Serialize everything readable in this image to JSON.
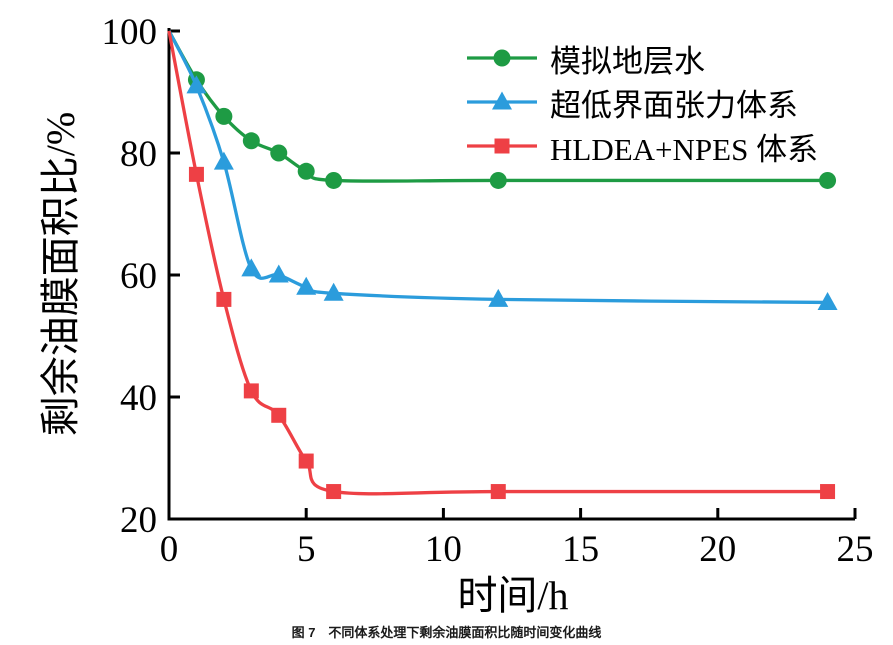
{
  "figure": {
    "caption": "图 7　不同体系处理下剩余油膜面积比随时间变化曲线"
  },
  "chart_data": {
    "type": "line",
    "title": "",
    "xlabel": "时间/h",
    "ylabel": "剩余油膜面积比/%",
    "xlim": [
      0,
      25
    ],
    "ylim": [
      20,
      100
    ],
    "xticks": [
      0,
      5,
      10,
      15,
      20,
      25
    ],
    "yticks": [
      20,
      40,
      60,
      80,
      100
    ],
    "grid": false,
    "legend_position": "upper-right-inside",
    "axis_color": "#000000",
    "marker_at_first_point": false,
    "x": [
      0,
      1,
      2,
      3,
      4,
      5,
      6,
      12,
      24
    ],
    "series": [
      {
        "name": "模拟地层水",
        "marker": "circle",
        "color": "#1e9b44",
        "values": [
          100,
          92,
          86,
          82,
          80,
          77,
          75.5,
          75.5,
          75.5
        ]
      },
      {
        "name": "超低界面张力体系",
        "marker": "triangle",
        "color": "#2b9cdc",
        "values": [
          100,
          91,
          78.5,
          61,
          60,
          58,
          57,
          56,
          55.5
        ]
      },
      {
        "name": "HLDEA+NPES 体系",
        "marker": "square",
        "color": "#ee4045",
        "values": [
          100,
          76.5,
          56,
          41,
          37,
          29.5,
          24.5,
          24.5,
          24.5
        ]
      }
    ]
  }
}
